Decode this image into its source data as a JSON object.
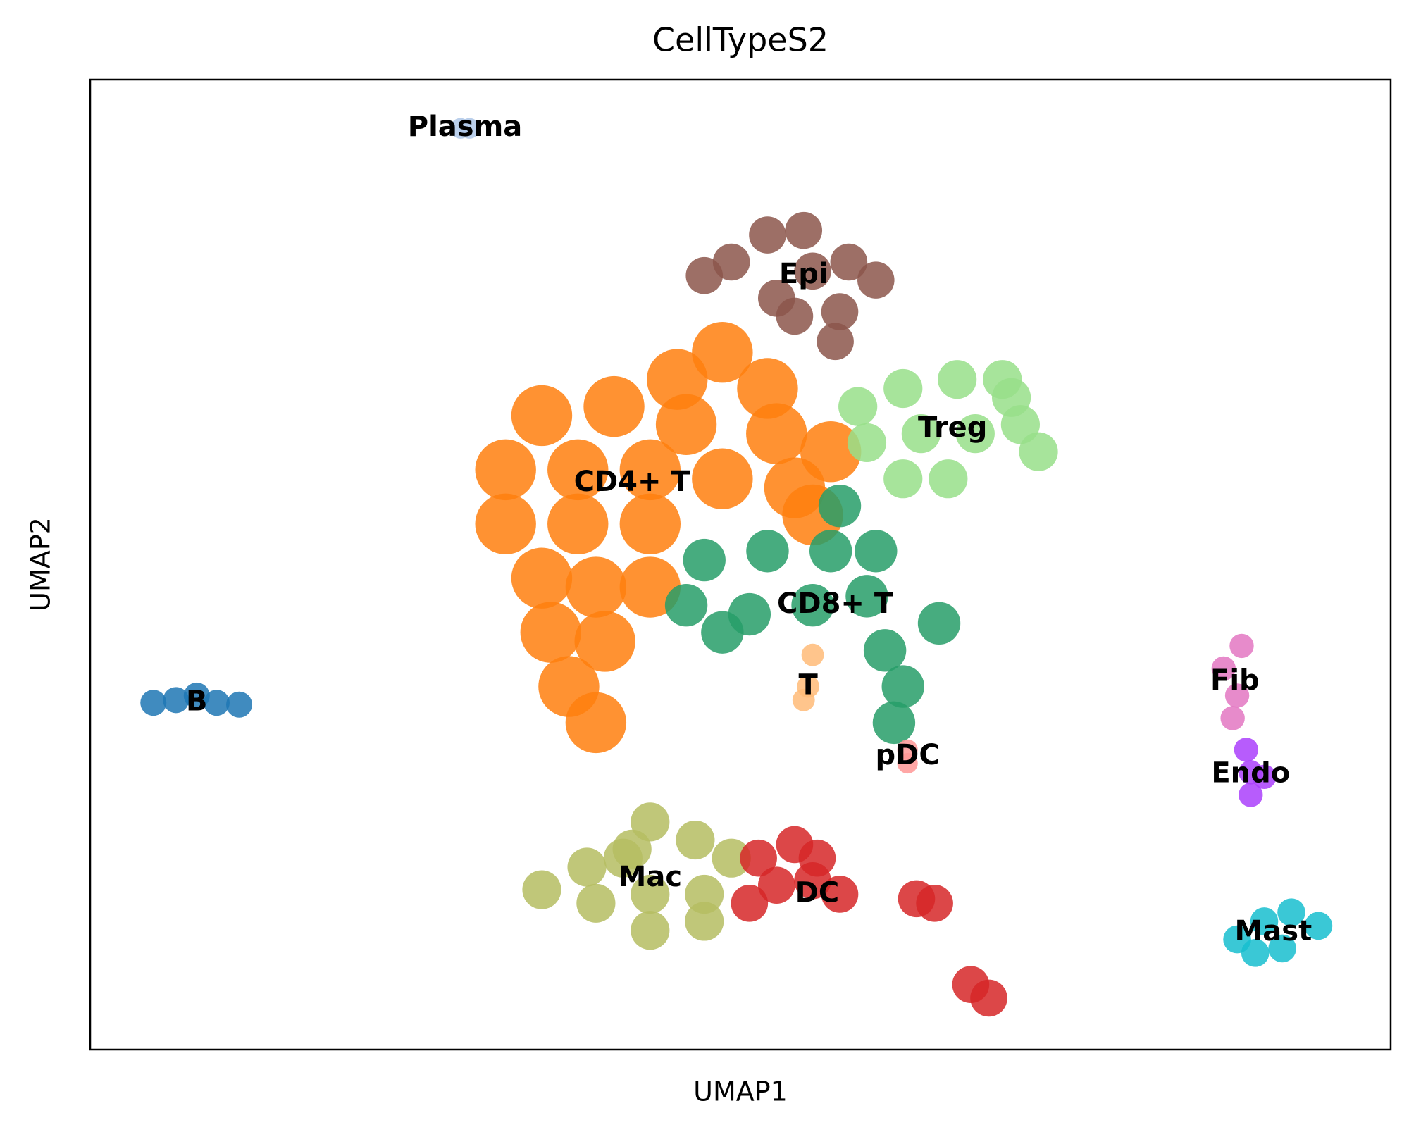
{
  "chart_data": {
    "type": "scatter",
    "title": "CellTypeS2",
    "x_label": "UMAP1",
    "y_label": "UMAP2",
    "xlim": [
      0,
      14.4
    ],
    "ylim": [
      0,
      10.74
    ],
    "series": [
      {
        "name": "Plasma",
        "color": "#aec7e8",
        "x": [
          4.1,
          4.2
        ],
        "y": [
          10.2,
          10.2
        ]
      },
      {
        "name": "Epi",
        "color": "#8c564b",
        "x": [
          6.8,
          7.1,
          7.5,
          7.9,
          7.6,
          8.0,
          8.4,
          8.7,
          8.3,
          7.8,
          8.25
        ],
        "y": [
          8.57,
          8.72,
          9.02,
          9.07,
          8.32,
          8.62,
          8.72,
          8.52,
          8.17,
          8.12,
          7.84
        ]
      },
      {
        "name": "CD4+ T",
        "color": "#ff7f0e",
        "x": [
          7.0,
          6.5,
          7.5,
          5.0,
          5.8,
          6.6,
          7.6,
          8.2,
          4.6,
          5.4,
          6.2,
          7.0,
          7.8,
          4.6,
          5.4,
          6.2,
          5.0,
          5.6,
          6.2,
          5.1,
          5.7,
          5.3,
          5.6,
          8.0
        ],
        "y": [
          7.72,
          7.42,
          7.32,
          7.02,
          7.12,
          6.92,
          6.82,
          6.62,
          6.42,
          6.42,
          6.42,
          6.32,
          6.22,
          5.82,
          5.82,
          5.82,
          5.22,
          5.12,
          5.12,
          4.62,
          4.52,
          4.02,
          3.62,
          5.92
        ]
      },
      {
        "name": "Treg",
        "color": "#98df8a",
        "x": [
          8.5,
          9.0,
          9.6,
          10.1,
          10.3,
          10.5,
          9.8,
          9.2,
          8.6,
          9.0,
          9.5,
          10.2
        ],
        "y": [
          7.12,
          7.32,
          7.42,
          7.42,
          6.92,
          6.62,
          6.82,
          6.82,
          6.72,
          6.32,
          6.32,
          7.22
        ]
      },
      {
        "name": "CD8+ T",
        "color": "#279e68",
        "x": [
          8.3,
          6.8,
          7.5,
          8.2,
          8.7,
          6.6,
          7.3,
          8.0,
          8.6,
          9.4,
          8.8,
          9.0,
          8.9,
          7.0
        ],
        "y": [
          6.02,
          5.42,
          5.52,
          5.52,
          5.52,
          4.92,
          4.82,
          4.92,
          5.02,
          4.72,
          4.42,
          4.02,
          3.62,
          4.62
        ]
      },
      {
        "name": "B",
        "color": "#1f77b4",
        "x": [
          0.7,
          0.95,
          1.18,
          1.4,
          1.65
        ],
        "y": [
          3.84,
          3.87,
          3.92,
          3.84,
          3.82
        ]
      },
      {
        "name": "T",
        "color": "#ffbb78",
        "x": [
          8.0,
          7.95,
          7.9
        ],
        "y": [
          4.37,
          4.02,
          3.87
        ]
      },
      {
        "name": "pDC",
        "color": "#ff9896",
        "x": [
          9.05,
          9.05
        ],
        "y": [
          3.32,
          3.17
        ]
      },
      {
        "name": "Fib",
        "color": "#e377c2",
        "x": [
          12.75,
          12.55,
          12.7,
          12.65
        ],
        "y": [
          4.47,
          4.22,
          3.92,
          3.67
        ]
      },
      {
        "name": "Endo",
        "color": "#aa40fc",
        "x": [
          12.8,
          12.85,
          13.0,
          12.85
        ],
        "y": [
          3.32,
          3.07,
          3.02,
          2.82
        ]
      },
      {
        "name": "Mac",
        "color": "#b5bd61",
        "x": [
          5.0,
          5.5,
          6.0,
          6.2,
          6.7,
          7.1,
          5.6,
          6.2,
          6.8,
          6.2,
          6.8,
          5.9
        ],
        "y": [
          1.77,
          2.02,
          2.22,
          2.52,
          2.32,
          2.12,
          1.62,
          1.72,
          1.72,
          1.32,
          1.42,
          2.12
        ]
      },
      {
        "name": "DC",
        "color": "#d62728",
        "x": [
          7.4,
          7.8,
          8.05,
          7.6,
          8.0,
          8.3,
          7.3,
          9.15,
          9.35,
          9.75,
          9.95
        ],
        "y": [
          2.12,
          2.27,
          2.12,
          1.82,
          1.87,
          1.72,
          1.62,
          1.67,
          1.62,
          0.72,
          0.57
        ]
      },
      {
        "name": "Mast",
        "color": "#17becf",
        "x": [
          12.7,
          13.0,
          13.3,
          13.6,
          13.2,
          12.9
        ],
        "y": [
          1.22,
          1.42,
          1.52,
          1.37,
          1.12,
          1.07
        ]
      }
    ]
  }
}
